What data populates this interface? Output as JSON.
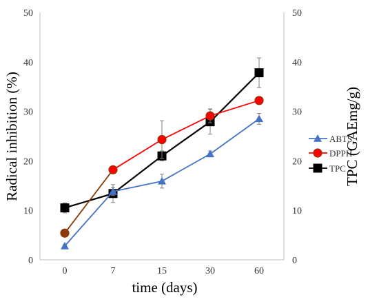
{
  "chart_data": {
    "type": "line",
    "title": "",
    "xlabel": "time (days)",
    "ylabel": "Radical inhibition (%)",
    "y2label": "TPC (GAEmg/g)",
    "categories": [
      "0",
      "7",
      "15",
      "30",
      "60"
    ],
    "ylim": [
      0,
      50
    ],
    "y2lim": [
      0,
      50
    ],
    "yticks": [
      "0",
      "10",
      "20",
      "30",
      "40",
      "50"
    ],
    "y2ticks": [
      "0",
      "10",
      "20",
      "30",
      "40",
      "50"
    ],
    "grid": false,
    "legend_position": "right",
    "series": [
      {
        "name": "ABTS",
        "axis": "left",
        "marker": "triangle",
        "color": "#4472C4",
        "values": [
          2.8,
          13.8,
          15.9,
          21.4,
          28.5
        ],
        "errors": [
          0.3,
          0.8,
          1.4,
          0.6,
          1.1
        ]
      },
      {
        "name": "DPPH",
        "axis": "left",
        "marker": "circle",
        "color": "#FF0000",
        "marker_color": "#8B3A0A",
        "values": [
          5.4,
          18.2,
          24.3,
          29.1,
          32.2
        ],
        "errors": [
          0.4,
          0.5,
          3.8,
          1.4,
          0.5
        ]
      },
      {
        "name": "TPC",
        "axis": "right",
        "marker": "square",
        "color": "#000000",
        "values": [
          10.5,
          13.4,
          21.0,
          27.9,
          37.8
        ],
        "errors": [
          1.0,
          1.8,
          1.0,
          2.5,
          3.0
        ]
      }
    ]
  }
}
